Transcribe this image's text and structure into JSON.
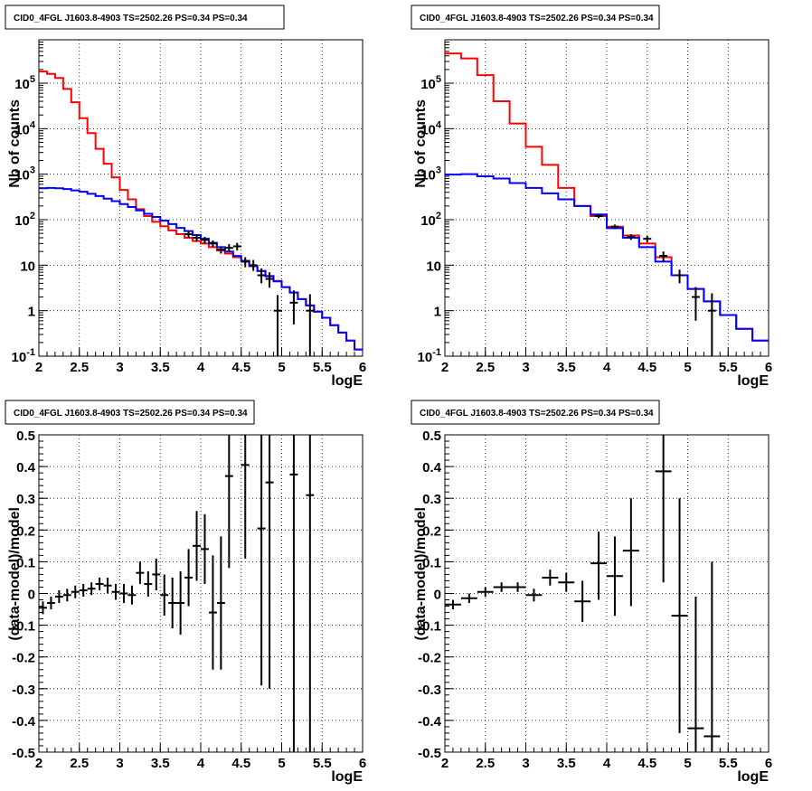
{
  "title_text": "CID0_4FGL J1603.8-4903 TS=2502.26 PS=0.34 PS=0.34",
  "chart_data": [
    {
      "type": "line",
      "panel": "counts-fine",
      "title": "CID0_4FGL J1603.8-4903 TS=2502.26 PS=0.34 PS=0.34",
      "xlabel": "logE",
      "ylabel": "Nb of counts",
      "xlim": [
        2,
        6
      ],
      "ylim": [
        0.1,
        900000
      ],
      "yscale": "log",
      "grid": true,
      "xticks": [
        "2",
        "2.5",
        "3",
        "3.5",
        "4",
        "4.5",
        "5",
        "5.5",
        "6"
      ],
      "yticks": [
        "10^-1",
        "1",
        "10",
        "10^2",
        "10^3",
        "10^4",
        "10^5"
      ],
      "bin_edges": [
        2.0,
        2.1,
        2.2,
        2.3,
        2.4,
        2.5,
        2.6,
        2.7,
        2.8,
        2.9,
        3.0,
        3.1,
        3.2,
        3.3,
        3.4,
        3.5,
        3.6,
        3.7,
        3.8,
        3.9,
        4.0,
        4.1,
        4.2,
        4.3,
        4.4,
        4.5,
        4.6,
        4.7,
        4.8,
        4.9,
        5.0,
        5.1,
        5.2,
        5.3,
        5.4,
        5.5,
        5.6,
        5.7,
        5.8,
        5.9,
        6.0
      ],
      "series": [
        {
          "color": "#ff0000",
          "values": [
            180000,
            160000,
            130000,
            75000,
            38000,
            17000,
            8000,
            3600,
            1700,
            850,
            450,
            280,
            170,
            120,
            90,
            72,
            58,
            48,
            40,
            34,
            30,
            25,
            21,
            18,
            15,
            12,
            9.5,
            7.5,
            5.8,
            4.5,
            3.3,
            2.5,
            1.8,
            1.3,
            0.95,
            0.7,
            0.48,
            0.33,
            0.22,
            0.14
          ]
        },
        {
          "color": "#0000ff",
          "values": [
            490,
            500,
            490,
            470,
            440,
            410,
            370,
            330,
            290,
            255,
            220,
            190,
            160,
            135,
            115,
            95,
            80,
            66,
            56,
            46,
            38,
            31,
            25,
            20,
            16,
            12.5,
            9.6,
            7.4,
            5.7,
            4.4,
            3.3,
            2.5,
            1.8,
            1.3,
            0.95,
            0.7,
            0.48,
            0.33,
            0.22,
            0.14
          ]
        }
      ],
      "points": {
        "x": [
          3.85,
          3.95,
          4.05,
          4.15,
          4.25,
          4.35,
          4.45,
          4.55,
          4.65,
          4.75,
          4.85,
          4.95,
          5.15,
          5.35
        ],
        "y": [
          48,
          40,
          36,
          30,
          22,
          24,
          26,
          12,
          10,
          6,
          5,
          1,
          1.5,
          1
        ],
        "ylo": [
          40,
          33,
          30,
          25,
          18,
          20,
          21,
          9,
          7.5,
          4,
          3.2,
          0.1,
          0.5,
          0.1
        ],
        "yhi": [
          56,
          47,
          42,
          35,
          26,
          29,
          31,
          15,
          13,
          8.5,
          7,
          2.2,
          2.8,
          2.3
        ]
      }
    },
    {
      "type": "line",
      "panel": "counts-coarse",
      "title": "CID0_4FGL J1603.8-4903 TS=2502.26 PS=0.34 PS=0.34",
      "xlabel": "logE",
      "ylabel": "Nb of counts",
      "xlim": [
        2,
        6
      ],
      "ylim": [
        0.1,
        900000
      ],
      "yscale": "log",
      "grid": true,
      "xticks": [
        "2",
        "2.5",
        "3",
        "3.5",
        "4",
        "4.5",
        "5",
        "5.5",
        "6"
      ],
      "yticks": [
        "10^-1",
        "1",
        "10",
        "10^2",
        "10^3",
        "10^4",
        "10^5"
      ],
      "bin_edges": [
        2.0,
        2.2,
        2.4,
        2.6,
        2.8,
        3.0,
        3.2,
        3.4,
        3.6,
        3.8,
        4.0,
        4.2,
        4.4,
        4.6,
        4.8,
        5.0,
        5.2,
        5.4,
        5.6,
        5.8,
        6.0
      ],
      "series": [
        {
          "color": "#ff0000",
          "values": [
            450000,
            350000,
            150000,
            40000,
            13000,
            4000,
            1600,
            500,
            200,
            120,
            70,
            45,
            30,
            15,
            6,
            3,
            1.6,
            0.8,
            0.4,
            0.22
          ]
        },
        {
          "color": "#0000ff",
          "values": [
            980,
            1000,
            900,
            800,
            640,
            500,
            380,
            280,
            200,
            130,
            65,
            40,
            25,
            12,
            6,
            3,
            1.6,
            0.8,
            0.4,
            0.22
          ]
        }
      ],
      "points": {
        "x": [
          3.9,
          4.1,
          4.3,
          4.5,
          4.7,
          4.9,
          5.1,
          5.3
        ],
        "y": [
          120,
          70,
          42,
          38,
          16,
          6,
          2,
          1
        ],
        "ylo": [
          108,
          62,
          36,
          32,
          12,
          4,
          0.6,
          0.1
        ],
        "yhi": [
          132,
          78,
          48,
          44,
          20,
          8,
          3.3,
          2.4
        ]
      }
    },
    {
      "type": "scatter",
      "panel": "residual-fine",
      "title": "CID0_4FGL J1603.8-4903 TS=2502.26 PS=0.34 PS=0.34",
      "xlabel": "logE",
      "ylabel": "(data-model)/model",
      "xlim": [
        2,
        6
      ],
      "ylim": [
        -0.5,
        0.5
      ],
      "grid": true,
      "xticks": [
        "2",
        "2.5",
        "3",
        "3.5",
        "4",
        "4.5",
        "5",
        "5.5",
        "6"
      ],
      "yticks": [
        "-0.5",
        "-0.4",
        "-0.3",
        "-0.2",
        "-0.1",
        "0",
        "0.1",
        "0.2",
        "0.3",
        "0.4",
        "0.5"
      ],
      "xerr": 0.05,
      "points": {
        "x": [
          2.05,
          2.15,
          2.25,
          2.35,
          2.45,
          2.55,
          2.65,
          2.75,
          2.85,
          2.95,
          3.05,
          3.15,
          3.25,
          3.35,
          3.45,
          3.55,
          3.65,
          3.75,
          3.85,
          3.95,
          4.05,
          4.15,
          4.25,
          4.35,
          4.55,
          4.75,
          4.85,
          5.15,
          5.35
        ],
        "y": [
          -0.045,
          -0.03,
          -0.01,
          -0.005,
          0.005,
          0.01,
          0.015,
          0.03,
          0.025,
          0.005,
          0.0,
          -0.005,
          0.065,
          0.03,
          0.06,
          -0.005,
          -0.03,
          -0.03,
          0.05,
          0.15,
          0.14,
          -0.06,
          -0.03,
          0.37,
          0.405,
          0.205,
          0.35,
          0.375,
          0.31
        ],
        "ylo": [
          -0.065,
          -0.05,
          -0.03,
          -0.025,
          -0.015,
          -0.01,
          -0.005,
          0.01,
          0.0,
          -0.02,
          -0.03,
          -0.035,
          0.03,
          -0.01,
          0.01,
          -0.07,
          -0.11,
          -0.13,
          -0.04,
          0.04,
          0.03,
          -0.24,
          -0.24,
          0.08,
          0.11,
          -0.29,
          -0.3,
          -0.5,
          -0.5
        ],
        "yhi": [
          -0.025,
          -0.01,
          0.01,
          0.015,
          0.025,
          0.03,
          0.035,
          0.05,
          0.05,
          0.03,
          0.03,
          0.025,
          0.1,
          0.07,
          0.11,
          0.06,
          0.05,
          0.07,
          0.14,
          0.26,
          0.25,
          0.12,
          0.18,
          0.5,
          0.5,
          0.5,
          0.5,
          0.5,
          0.5
        ]
      }
    },
    {
      "type": "scatter",
      "panel": "residual-coarse",
      "title": "CID0_4FGL J1603.8-4903 TS=2502.26 PS=0.34 PS=0.34",
      "xlabel": "logE",
      "ylabel": "(data-model)/model",
      "xlim": [
        2,
        6
      ],
      "ylim": [
        -0.5,
        0.5
      ],
      "grid": true,
      "xticks": [
        "2",
        "2.5",
        "3",
        "3.5",
        "4",
        "4.5",
        "5",
        "5.5",
        "6"
      ],
      "yticks": [
        "-0.5",
        "-0.4",
        "-0.3",
        "-0.2",
        "-0.1",
        "0",
        "0.1",
        "0.2",
        "0.3",
        "0.4",
        "0.5"
      ],
      "xerr": 0.1,
      "points": {
        "x": [
          2.1,
          2.3,
          2.5,
          2.7,
          2.9,
          3.1,
          3.3,
          3.5,
          3.7,
          3.9,
          4.1,
          4.3,
          4.7,
          4.9,
          5.1,
          5.3
        ],
        "y": [
          -0.035,
          -0.015,
          0.005,
          0.02,
          0.02,
          -0.005,
          0.05,
          0.035,
          -0.025,
          0.095,
          0.055,
          0.135,
          0.385,
          -0.07,
          -0.425,
          -0.45
        ],
        "ylo": [
          -0.05,
          -0.03,
          -0.01,
          0.005,
          0.005,
          -0.025,
          0.025,
          0.005,
          -0.09,
          -0.02,
          -0.07,
          -0.04,
          0.035,
          -0.44,
          -0.5,
          -0.5
        ],
        "yhi": [
          -0.02,
          0.0,
          0.02,
          0.035,
          0.035,
          0.015,
          0.075,
          0.065,
          0.04,
          0.195,
          0.18,
          0.3,
          0.5,
          0.3,
          -0.01,
          0.1
        ]
      }
    }
  ]
}
